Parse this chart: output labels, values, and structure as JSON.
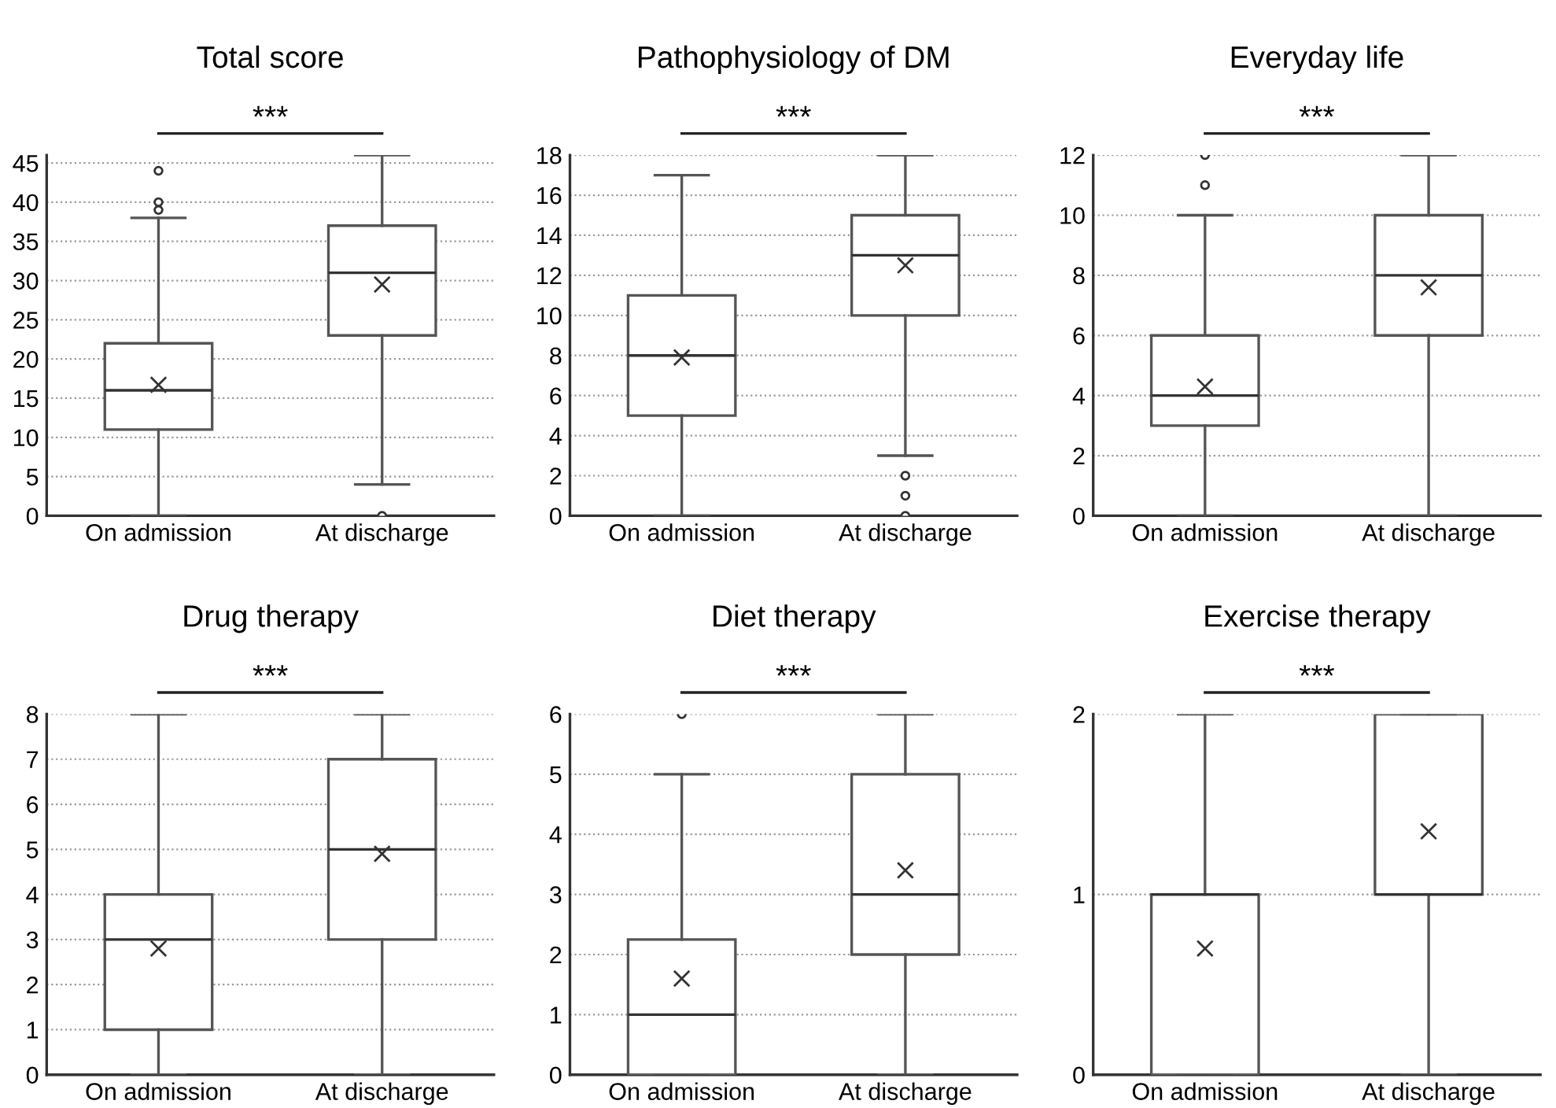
{
  "chart_data": [
    {
      "type": "box",
      "title": "Total score",
      "categories": [
        "On admission",
        "At discharge"
      ],
      "ylim": [
        0,
        46
      ],
      "yticks": [
        0,
        5,
        10,
        15,
        20,
        25,
        30,
        35,
        40,
        45
      ],
      "grid": "y",
      "annotations": [
        "***"
      ],
      "boxes": [
        {
          "low": 0,
          "q1": 11,
          "median": 16,
          "q3": 22,
          "high": 38,
          "mean": 16.7,
          "outliers": [
            39,
            40,
            44
          ]
        },
        {
          "low": 4,
          "q1": 23,
          "median": 31,
          "q3": 37,
          "high": 46,
          "mean": 29.5,
          "outliers": [
            0
          ]
        }
      ]
    },
    {
      "type": "box",
      "title": "Pathophysiology of DM",
      "categories": [
        "On admission",
        "At discharge"
      ],
      "ylim": [
        0,
        18
      ],
      "yticks": [
        0,
        2,
        4,
        6,
        8,
        10,
        12,
        14,
        16,
        18
      ],
      "grid": "y",
      "annotations": [
        "***"
      ],
      "boxes": [
        {
          "low": 0,
          "q1": 5,
          "median": 8,
          "q3": 11,
          "high": 17,
          "mean": 7.9
        },
        {
          "low": 3,
          "q1": 10,
          "median": 13,
          "q3": 15,
          "high": 18,
          "mean": 12.5,
          "outliers": [
            0,
            1,
            2
          ]
        }
      ]
    },
    {
      "type": "box",
      "title": "Everyday life",
      "categories": [
        "On admission",
        "At discharge"
      ],
      "ylim": [
        0,
        12
      ],
      "yticks": [
        0,
        2,
        4,
        6,
        8,
        10,
        12
      ],
      "grid": "y",
      "annotations": [
        "***"
      ],
      "boxes": [
        {
          "low": 0,
          "q1": 3,
          "median": 4,
          "q3": 6,
          "high": 10,
          "mean": 4.3,
          "outliers": [
            11,
            12
          ]
        },
        {
          "low": 0,
          "q1": 6,
          "median": 8,
          "q3": 10,
          "high": 12,
          "mean": 7.6
        }
      ]
    },
    {
      "type": "box",
      "title": "Drug therapy",
      "categories": [
        "On admission",
        "At discharge"
      ],
      "ylim": [
        0,
        8
      ],
      "yticks": [
        0,
        1,
        2,
        3,
        4,
        5,
        6,
        7,
        8
      ],
      "grid": "y",
      "annotations": [
        "***"
      ],
      "boxes": [
        {
          "low": 0,
          "q1": 1,
          "median": 3,
          "q3": 4,
          "high": 8,
          "mean": 2.8
        },
        {
          "low": 0,
          "q1": 3,
          "median": 5,
          "q3": 7,
          "high": 8,
          "mean": 4.9
        }
      ]
    },
    {
      "type": "box",
      "title": "Diet therapy",
      "categories": [
        "On admission",
        "At discharge"
      ],
      "ylim": [
        0,
        6
      ],
      "yticks": [
        0,
        1,
        2,
        3,
        4,
        5,
        6
      ],
      "grid": "y",
      "annotations": [
        "***"
      ],
      "boxes": [
        {
          "low": 0,
          "q1": 0,
          "median": 1,
          "q3": 2.25,
          "high": 5,
          "mean": 1.6,
          "outliers": [
            6
          ]
        },
        {
          "low": 0,
          "q1": 2,
          "median": 3,
          "q3": 5,
          "high": 6,
          "mean": 3.4
        }
      ]
    },
    {
      "type": "box",
      "title": "Exercise therapy",
      "categories": [
        "On admission",
        "At discharge"
      ],
      "ylim": [
        0,
        2
      ],
      "yticks": [
        0,
        1,
        2
      ],
      "grid": "y",
      "annotations": [
        "***"
      ],
      "boxes": [
        {
          "low": 0,
          "q1": 0,
          "median": 1,
          "q3": 1,
          "high": 2,
          "mean": 0.7
        },
        {
          "low": 0,
          "q1": 1,
          "median": 1,
          "q3": 2,
          "high": 2,
          "mean": 1.35
        }
      ]
    }
  ]
}
